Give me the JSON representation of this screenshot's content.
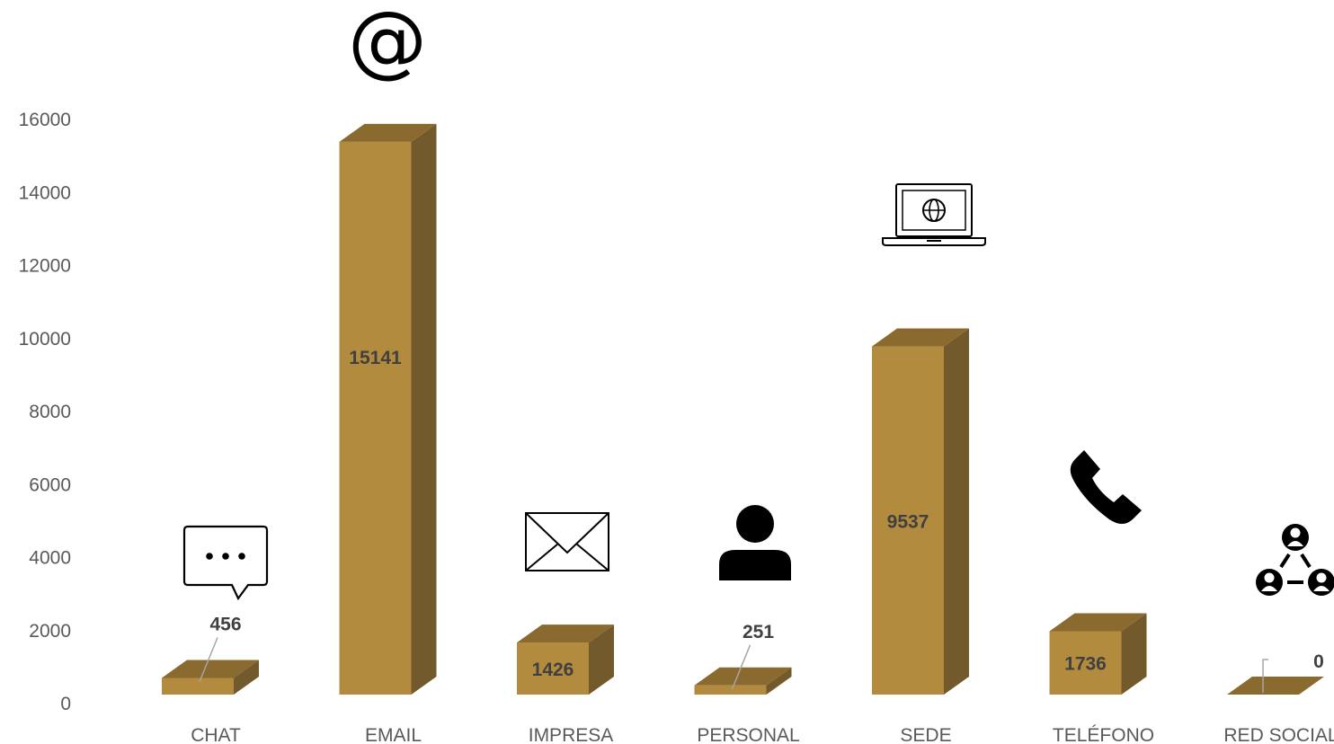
{
  "chart_data": {
    "type": "bar",
    "title": "",
    "xlabel": "",
    "ylabel": "",
    "categories": [
      "CHAT",
      "EMAIL",
      "IMPRESA",
      "PERSONAL",
      "SEDE",
      "TELÉFONO",
      "RED SOCIAL"
    ],
    "values": [
      456,
      15141,
      1426,
      251,
      9537,
      1736,
      0
    ],
    "labels": [
      "456",
      "15141",
      "1426",
      "251",
      "9537",
      "1736",
      "0"
    ],
    "icons": [
      "chat-bubble-icon",
      "at-sign-icon",
      "envelope-icon",
      "person-icon",
      "laptop-globe-icon",
      "phone-icon",
      "social-network-icon"
    ],
    "yticks": [
      "0",
      "2000",
      "4000",
      "6000",
      "8000",
      "10000",
      "12000",
      "14000",
      "16000"
    ],
    "ylim": [
      0,
      16000
    ],
    "grid": false,
    "legend": "none",
    "bar_style": "3d",
    "colors": {
      "front": "#B38B3E",
      "top": "#8A6A2E",
      "side": "#735A2C",
      "label": "#404040",
      "tick": "#595959",
      "leader": "#A6A6A6"
    }
  }
}
